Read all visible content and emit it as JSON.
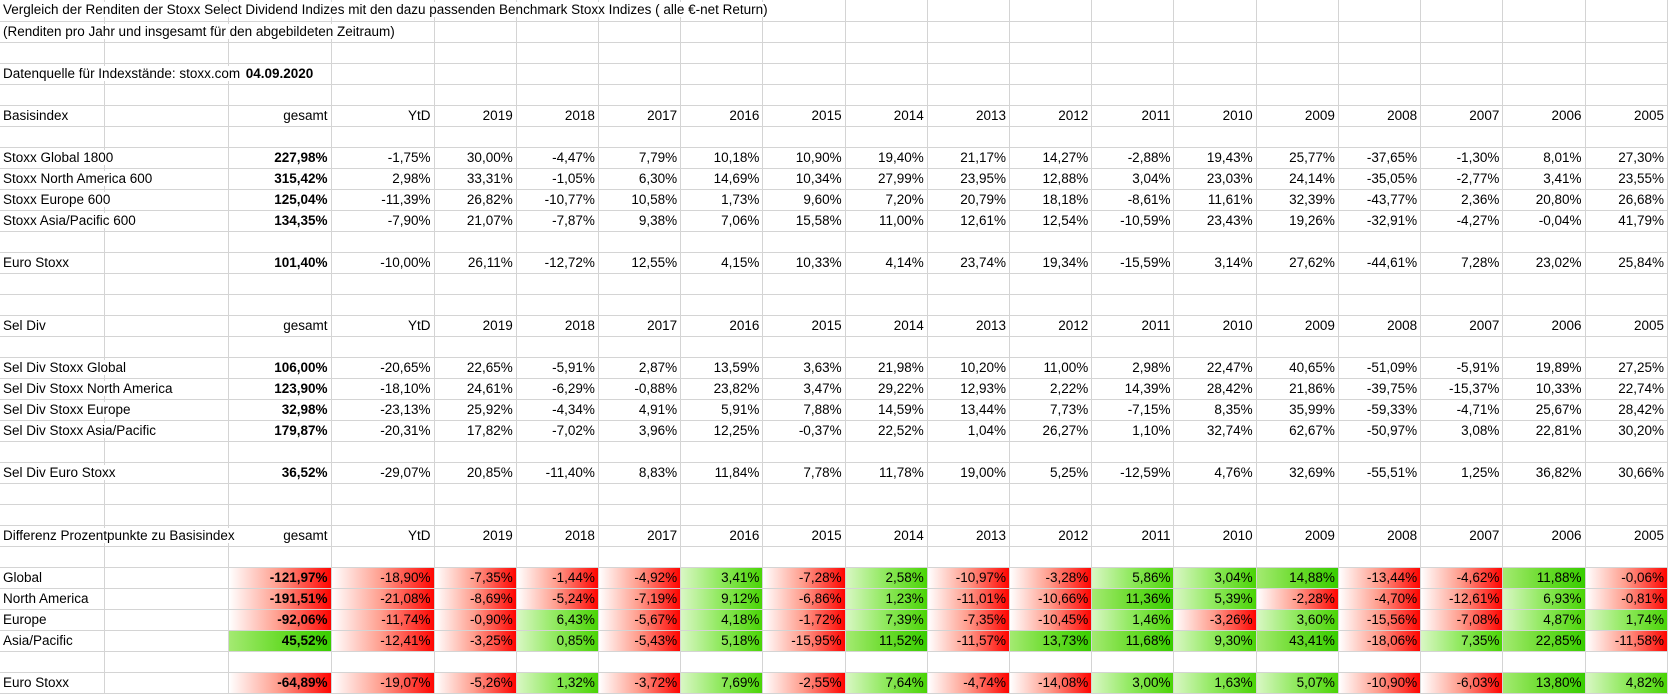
{
  "meta": {
    "title_line1": "Vergleich der Renditen der Stoxx Select Dividend Indizes mit den dazu passenden Benchmark Stoxx Indizes ( alle €-net Return)",
    "title_line2": "(Renditen pro Jahr und insgesamt für den abgebildeten Zeitraum)",
    "source_label": "Datenquelle für Indexstände: stoxx.com",
    "source_date": "04.09.2020"
  },
  "columns": [
    "gesamt",
    "YtD",
    "2019",
    "2018",
    "2017",
    "2016",
    "2015",
    "2014",
    "2013",
    "2012",
    "2011",
    "2010",
    "2009",
    "2008",
    "2007",
    "2006",
    "2005"
  ],
  "tables": [
    {
      "label": "Basisindex",
      "colored": false,
      "rows": [
        {
          "label": "Stoxx Global 1800",
          "values": [
            "227,98%",
            "-1,75%",
            "30,00%",
            "-4,47%",
            "7,79%",
            "10,18%",
            "10,90%",
            "19,40%",
            "21,17%",
            "14,27%",
            "-2,88%",
            "19,43%",
            "25,77%",
            "-37,65%",
            "-1,30%",
            "8,01%",
            "27,30%"
          ]
        },
        {
          "label": "Stoxx North America 600",
          "values": [
            "315,42%",
            "2,98%",
            "33,31%",
            "-1,05%",
            "6,30%",
            "14,69%",
            "10,34%",
            "27,99%",
            "23,95%",
            "12,88%",
            "3,04%",
            "23,03%",
            "24,14%",
            "-35,05%",
            "-2,77%",
            "3,41%",
            "23,55%"
          ]
        },
        {
          "label": "Stoxx Europe 600",
          "values": [
            "125,04%",
            "-11,39%",
            "26,82%",
            "-10,77%",
            "10,58%",
            "1,73%",
            "9,60%",
            "7,20%",
            "20,79%",
            "18,18%",
            "-8,61%",
            "11,61%",
            "32,39%",
            "-43,77%",
            "2,36%",
            "20,80%",
            "26,68%"
          ]
        },
        {
          "label": "Stoxx Asia/Pacific 600",
          "values": [
            "134,35%",
            "-7,90%",
            "21,07%",
            "-7,87%",
            "9,38%",
            "7,06%",
            "15,58%",
            "11,00%",
            "12,61%",
            "12,54%",
            "-10,59%",
            "23,43%",
            "19,26%",
            "-32,91%",
            "-4,27%",
            "-0,04%",
            "41,79%"
          ]
        },
        {
          "label": "Euro Stoxx",
          "values": [
            "101,40%",
            "-10,00%",
            "26,11%",
            "-12,72%",
            "12,55%",
            "4,15%",
            "10,33%",
            "4,14%",
            "23,74%",
            "19,34%",
            "-15,59%",
            "3,14%",
            "27,62%",
            "-44,61%",
            "7,28%",
            "23,02%",
            "25,84%"
          ]
        }
      ]
    },
    {
      "label": "Sel Div",
      "colored": false,
      "rows": [
        {
          "label": "Sel Div Stoxx Global",
          "values": [
            "106,00%",
            "-20,65%",
            "22,65%",
            "-5,91%",
            "2,87%",
            "13,59%",
            "3,63%",
            "21,98%",
            "10,20%",
            "11,00%",
            "2,98%",
            "22,47%",
            "40,65%",
            "-51,09%",
            "-5,91%",
            "19,89%",
            "27,25%"
          ]
        },
        {
          "label": "Sel Div Stoxx North America",
          "values": [
            "123,90%",
            "-18,10%",
            "24,61%",
            "-6,29%",
            "-0,88%",
            "23,82%",
            "3,47%",
            "29,22%",
            "12,93%",
            "2,22%",
            "14,39%",
            "28,42%",
            "21,86%",
            "-39,75%",
            "-15,37%",
            "10,33%",
            "22,74%"
          ]
        },
        {
          "label": "Sel Div Stoxx Europe",
          "values": [
            "32,98%",
            "-23,13%",
            "25,92%",
            "-4,34%",
            "4,91%",
            "5,91%",
            "7,88%",
            "14,59%",
            "13,44%",
            "7,73%",
            "-7,15%",
            "8,35%",
            "35,99%",
            "-59,33%",
            "-4,71%",
            "25,67%",
            "28,42%"
          ]
        },
        {
          "label": "Sel Div Stoxx Asia/Pacific",
          "values": [
            "179,87%",
            "-20,31%",
            "17,82%",
            "-7,02%",
            "3,96%",
            "12,25%",
            "-0,37%",
            "22,52%",
            "1,04%",
            "26,27%",
            "1,10%",
            "32,74%",
            "62,67%",
            "-50,97%",
            "3,08%",
            "22,81%",
            "30,20%"
          ]
        },
        {
          "label": "Sel Div Euro Stoxx",
          "values": [
            "36,52%",
            "-29,07%",
            "20,85%",
            "-11,40%",
            "8,83%",
            "11,84%",
            "7,78%",
            "11,78%",
            "19,00%",
            "5,25%",
            "-12,59%",
            "4,76%",
            "32,69%",
            "-55,51%",
            "1,25%",
            "36,82%",
            "30,66%"
          ]
        }
      ]
    },
    {
      "label": "Differenz Prozentpunkte zu Basisindex",
      "colored": true,
      "rows": [
        {
          "label": "Global",
          "values": [
            "-121,97%",
            "-18,90%",
            "-7,35%",
            "-1,44%",
            "-4,92%",
            "3,41%",
            "-7,28%",
            "2,58%",
            "-10,97%",
            "-3,28%",
            "5,86%",
            "3,04%",
            "14,88%",
            "-13,44%",
            "-4,62%",
            "11,88%",
            "-0,06%"
          ]
        },
        {
          "label": "North America",
          "values": [
            "-191,51%",
            "-21,08%",
            "-8,69%",
            "-5,24%",
            "-7,19%",
            "9,12%",
            "-6,86%",
            "1,23%",
            "-11,01%",
            "-10,66%",
            "11,36%",
            "5,39%",
            "-2,28%",
            "-4,70%",
            "-12,61%",
            "6,93%",
            "-0,81%"
          ]
        },
        {
          "label": "Europe",
          "values": [
            "-92,06%",
            "-11,74%",
            "-0,90%",
            "6,43%",
            "-5,67%",
            "4,18%",
            "-1,72%",
            "7,39%",
            "-7,35%",
            "-10,45%",
            "1,46%",
            "-3,26%",
            "3,60%",
            "-15,56%",
            "-7,08%",
            "4,87%",
            "1,74%"
          ]
        },
        {
          "label": "Asia/Pacific",
          "values": [
            "45,52%",
            "-12,41%",
            "-3,25%",
            "0,85%",
            "-5,43%",
            "5,18%",
            "-15,95%",
            "11,52%",
            "-11,57%",
            "13,73%",
            "11,68%",
            "9,30%",
            "43,41%",
            "-18,06%",
            "7,35%",
            "22,85%",
            "-11,58%"
          ]
        },
        {
          "label": "Euro Stoxx",
          "values": [
            "-64,89%",
            "-19,07%",
            "-5,26%",
            "1,32%",
            "-3,72%",
            "7,69%",
            "-2,55%",
            "7,64%",
            "-4,74%",
            "-14,08%",
            "3,00%",
            "1,63%",
            "5,07%",
            "-10,90%",
            "-6,03%",
            "13,80%",
            "4,82%"
          ]
        }
      ]
    }
  ],
  "colors": {
    "negative_gradient_end": "#ff0000",
    "positive_gradient_end": "#47d800",
    "gridline": "#d4d4d4",
    "text": "#000000",
    "background": "#ffffff"
  }
}
